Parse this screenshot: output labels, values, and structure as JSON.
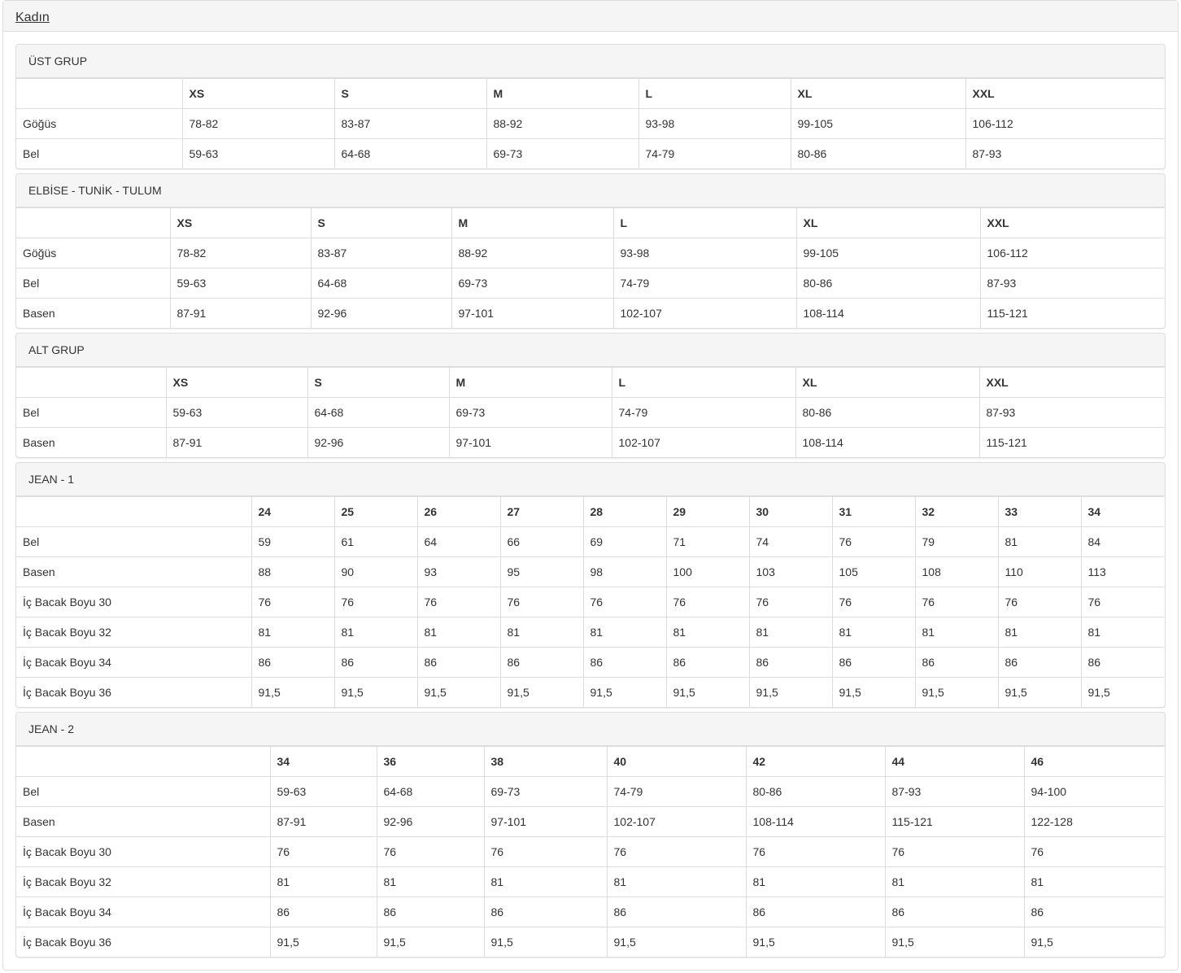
{
  "title": "Kadın",
  "tables": [
    {
      "name": "ÜST GRUP",
      "headers": [
        "",
        "XS",
        "S",
        "M",
        "L",
        "XL",
        "XXL"
      ],
      "rows": [
        [
          "Göğüs",
          "78-82",
          "83-87",
          "88-92",
          "93-98",
          "99-105",
          "106-112"
        ],
        [
          "Bel",
          "59-63",
          "64-68",
          "69-73",
          "74-79",
          "80-86",
          "87-93"
        ]
      ]
    },
    {
      "name": "ELBİSE - TUNİK - TULUM",
      "headers": [
        "",
        "XS",
        "S",
        "M",
        "L",
        "XL",
        "XXL"
      ],
      "rows": [
        [
          "Göğüs",
          "78-82",
          "83-87",
          "88-92",
          "93-98",
          "99-105",
          "106-112"
        ],
        [
          "Bel",
          "59-63",
          "64-68",
          "69-73",
          "74-79",
          "80-86",
          "87-93"
        ],
        [
          "Basen",
          "87-91",
          "92-96",
          "97-101",
          "102-107",
          "108-114",
          "115-121"
        ]
      ]
    },
    {
      "name": "ALT GRUP",
      "headers": [
        "",
        "XS",
        "S",
        "M",
        "L",
        "XL",
        "XXL"
      ],
      "rows": [
        [
          "Bel",
          "59-63",
          "64-68",
          "69-73",
          "74-79",
          "80-86",
          "87-93"
        ],
        [
          "Basen",
          "87-91",
          "92-96",
          "97-101",
          "102-107",
          "108-114",
          "115-121"
        ]
      ]
    },
    {
      "name": "JEAN - 1",
      "headers": [
        "",
        "24",
        "25",
        "26",
        "27",
        "28",
        "29",
        "30",
        "31",
        "32",
        "33",
        "34"
      ],
      "rows": [
        [
          "Bel",
          "59",
          "61",
          "64",
          "66",
          "69",
          "71",
          "74",
          "76",
          "79",
          "81",
          "84"
        ],
        [
          "Basen",
          "88",
          "90",
          "93",
          "95",
          "98",
          "100",
          "103",
          "105",
          "108",
          "110",
          "113"
        ],
        [
          "İç Bacak Boyu 30",
          "76",
          "76",
          "76",
          "76",
          "76",
          "76",
          "76",
          "76",
          "76",
          "76",
          "76"
        ],
        [
          "İç Bacak Boyu 32",
          "81",
          "81",
          "81",
          "81",
          "81",
          "81",
          "81",
          "81",
          "81",
          "81",
          "81"
        ],
        [
          "İç Bacak Boyu 34",
          "86",
          "86",
          "86",
          "86",
          "86",
          "86",
          "86",
          "86",
          "86",
          "86",
          "86"
        ],
        [
          "İç Bacak Boyu 36",
          "91,5",
          "91,5",
          "91,5",
          "91,5",
          "91,5",
          "91,5",
          "91,5",
          "91,5",
          "91,5",
          "91,5",
          "91,5"
        ]
      ]
    },
    {
      "name": "JEAN - 2",
      "headers": [
        "",
        "34",
        "36",
        "38",
        "40",
        "42",
        "44",
        "46"
      ],
      "rows": [
        [
          "Bel",
          "59-63",
          "64-68",
          "69-73",
          "74-79",
          "80-86",
          "87-93",
          "94-100"
        ],
        [
          "Basen",
          "87-91",
          "92-96",
          "97-101",
          "102-107",
          "108-114",
          "115-121",
          "122-128"
        ],
        [
          "İç Bacak Boyu 30",
          "76",
          "76",
          "76",
          "76",
          "76",
          "76",
          "76"
        ],
        [
          "İç Bacak Boyu 32",
          "81",
          "81",
          "81",
          "81",
          "81",
          "81",
          "81"
        ],
        [
          "İç Bacak Boyu 34",
          "86",
          "86",
          "86",
          "86",
          "86",
          "86",
          "86"
        ],
        [
          "İç Bacak Boyu 36",
          "91,5",
          "91,5",
          "91,5",
          "91,5",
          "91,5",
          "91,5",
          "91,5"
        ]
      ]
    }
  ]
}
